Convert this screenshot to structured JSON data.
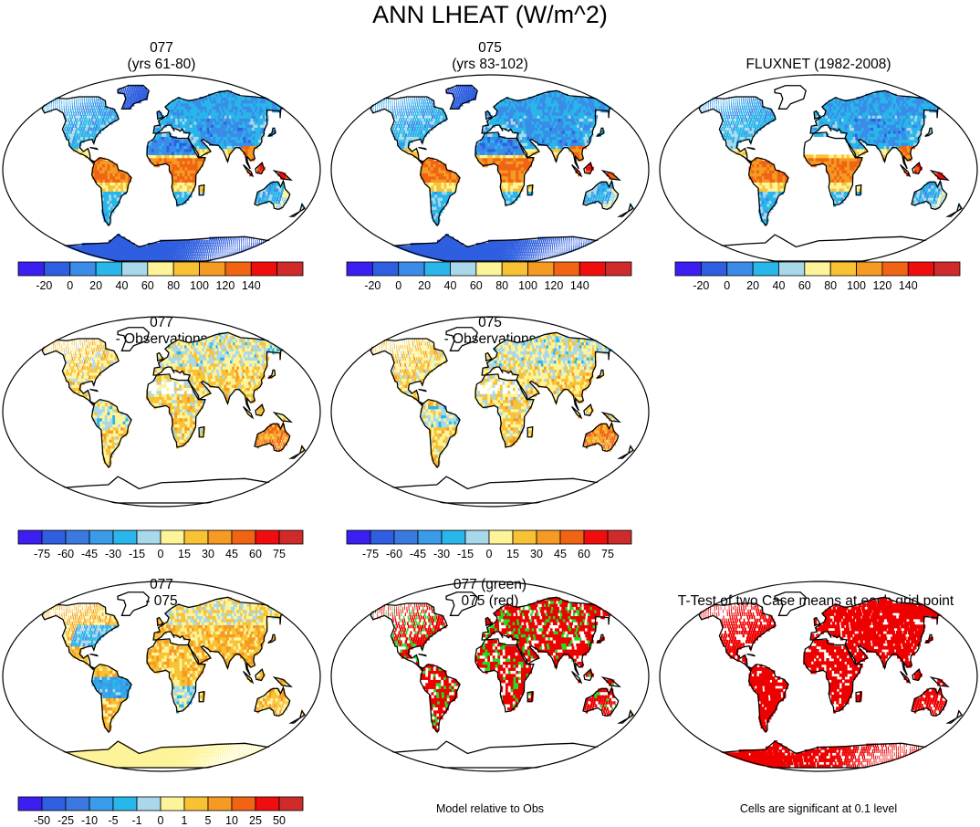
{
  "title": "ANN LHEAT (W/m^2)",
  "chart_data": [
    {
      "type": "heatmap",
      "panel": "077-abs",
      "title_lines": [
        "077",
        "(yrs 61-80)"
      ],
      "colorbar": {
        "labels": [
          "-20",
          "0",
          "20",
          "40",
          "60",
          "80",
          "100",
          "120",
          "140"
        ],
        "colors": [
          "#3b1ff0",
          "#2f5fe0",
          "#3a8ce8",
          "#29b6ea",
          "#a9d8ea",
          "#fdf49a",
          "#f8c234",
          "#f59a22",
          "#f06414",
          "#f00d0d",
          "#cf2b2b"
        ]
      }
    },
    {
      "type": "heatmap",
      "panel": "075-abs",
      "title_lines": [
        "075",
        "(yrs 83-102)"
      ],
      "colorbar": {
        "labels": [
          "-20",
          "0",
          "20",
          "40",
          "60",
          "80",
          "100",
          "120",
          "140"
        ],
        "colors": [
          "#3b1ff0",
          "#2f5fe0",
          "#3a8ce8",
          "#29b6ea",
          "#a9d8ea",
          "#fdf49a",
          "#f8c234",
          "#f59a22",
          "#f06414",
          "#f00d0d",
          "#cf2b2b"
        ]
      }
    },
    {
      "type": "heatmap",
      "panel": "obs",
      "title_lines": [
        "FLUXNET (1982-2008)"
      ],
      "colorbar": {
        "labels": [
          "-20",
          "0",
          "20",
          "40",
          "60",
          "80",
          "100",
          "120",
          "140"
        ],
        "colors": [
          "#3b1ff0",
          "#2f5fe0",
          "#3a8ce8",
          "#29b6ea",
          "#a9d8ea",
          "#fdf49a",
          "#f8c234",
          "#f59a22",
          "#f06414",
          "#f00d0d",
          "#cf2b2b"
        ]
      }
    },
    {
      "type": "heatmap",
      "panel": "077-obs",
      "title_lines": [
        "077",
        "- Observations"
      ],
      "colorbar": {
        "labels": [
          "-75",
          "-60",
          "-45",
          "-30",
          "-15",
          "0",
          "15",
          "30",
          "45",
          "60",
          "75"
        ],
        "colors": [
          "#3b1ff0",
          "#2f5fe0",
          "#3a7ae0",
          "#3a9be8",
          "#29b6ea",
          "#a9d8ea",
          "#fdf49a",
          "#f8c234",
          "#f59a22",
          "#f06414",
          "#f00d0d",
          "#cf2b2b"
        ]
      }
    },
    {
      "type": "heatmap",
      "panel": "075-obs",
      "title_lines": [
        "075",
        "- Observations"
      ],
      "colorbar": {
        "labels": [
          "-75",
          "-60",
          "-45",
          "-30",
          "-15",
          "0",
          "15",
          "30",
          "45",
          "60",
          "75"
        ],
        "colors": [
          "#3b1ff0",
          "#2f5fe0",
          "#3a7ae0",
          "#3a9be8",
          "#29b6ea",
          "#a9d8ea",
          "#fdf49a",
          "#f8c234",
          "#f59a22",
          "#f06414",
          "#f00d0d",
          "#cf2b2b"
        ]
      }
    },
    {
      "type": "heatmap",
      "panel": "077-075",
      "title_lines": [
        "077",
        "- 075"
      ],
      "colorbar": {
        "labels": [
          "-50",
          "-25",
          "-10",
          "-5",
          "-1",
          "0",
          "1",
          "5",
          "10",
          "25",
          "50"
        ],
        "colors": [
          "#3b1ff0",
          "#2f5fe0",
          "#3a7ae0",
          "#3a9be8",
          "#29b6ea",
          "#a9d8ea",
          "#fdf49a",
          "#f8c234",
          "#f59a22",
          "#f06414",
          "#f00d0d",
          "#cf2b2b"
        ]
      }
    },
    {
      "type": "heatmap",
      "panel": "model-vs-obs",
      "title_lines": [
        "077 (green)",
        "075 (red)"
      ],
      "caption": "Model relative to Obs",
      "legend": [
        {
          "name": "077",
          "color": "#22dd22"
        },
        {
          "name": "075",
          "color": "#ee0000"
        }
      ]
    },
    {
      "type": "heatmap",
      "panel": "ttest",
      "title_lines": [
        "T-Test of two Case means at each grid point"
      ],
      "caption": "Cells are significant at 0.1 level"
    }
  ]
}
